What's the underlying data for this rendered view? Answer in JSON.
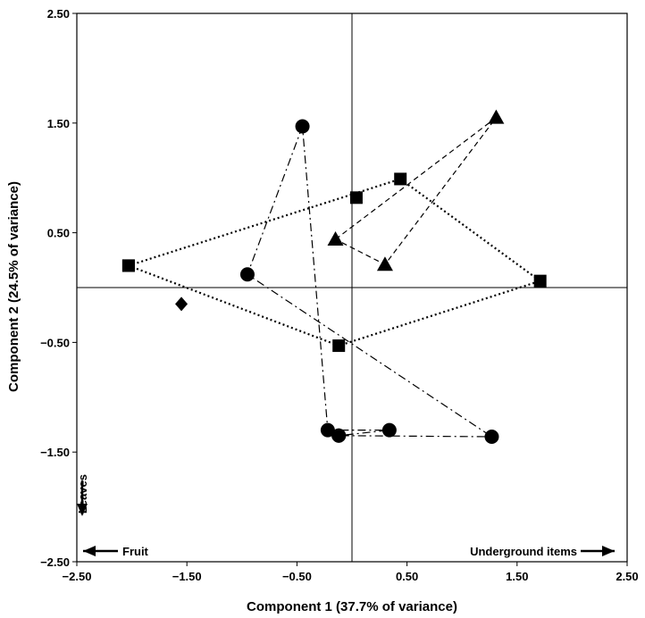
{
  "chart_data": {
    "type": "scatter",
    "xlabel": "Component 1 (37.7% of variance)",
    "ylabel": "Component 2 (24.5% of variance)",
    "xlim": [
      -2.5,
      2.5
    ],
    "ylim": [
      -2.5,
      2.5
    ],
    "xticks": [
      "-2.50",
      "-1.50",
      "-0.50",
      "0.50",
      "1.50",
      "2.50"
    ],
    "yticks": [
      "-2.50",
      "-1.50",
      "-0.50",
      "0.50",
      "1.50",
      "2.50"
    ],
    "grid": false,
    "zero_lines": true,
    "series": [
      {
        "marker": "circle",
        "line_style": "dashdot",
        "hull_order": [
          0,
          1,
          5,
          6,
          4,
          2
        ],
        "points": [
          {
            "x": -0.45,
            "y": 1.47
          },
          {
            "x": -0.95,
            "y": 0.12
          },
          {
            "x": -0.22,
            "y": -1.3
          },
          {
            "x": -0.12,
            "y": -1.35
          },
          {
            "x": 0.34,
            "y": -1.3
          },
          {
            "x": 1.27,
            "y": -1.36
          },
          {
            "x": -0.12,
            "y": -1.35
          }
        ]
      },
      {
        "marker": "square",
        "line_style": "dotted",
        "hull_order": [
          0,
          1,
          2,
          3,
          4
        ],
        "points": [
          {
            "x": -2.03,
            "y": 0.2
          },
          {
            "x": 0.44,
            "y": 0.99
          },
          {
            "x": 1.71,
            "y": 0.06
          },
          {
            "x": -0.12,
            "y": -0.53
          },
          {
            "x": -2.03,
            "y": 0.2
          },
          {
            "x": 0.04,
            "y": 0.82
          }
        ]
      },
      {
        "marker": "triangle",
        "line_style": "dashed",
        "hull_order": [
          0,
          1,
          2,
          0
        ],
        "points": [
          {
            "x": -0.15,
            "y": 0.44
          },
          {
            "x": 1.31,
            "y": 1.55
          },
          {
            "x": 0.3,
            "y": 0.21
          }
        ]
      },
      {
        "marker": "diamond",
        "line_style": "none",
        "hull_order": [],
        "points": [
          {
            "x": -1.55,
            "y": -0.15
          }
        ]
      }
    ],
    "annotations": {
      "fruit": "Fruit",
      "underground": "Underground items",
      "leaves": "Leaves"
    },
    "colors": {
      "ink": "#000000",
      "background": "#ffffff"
    }
  }
}
